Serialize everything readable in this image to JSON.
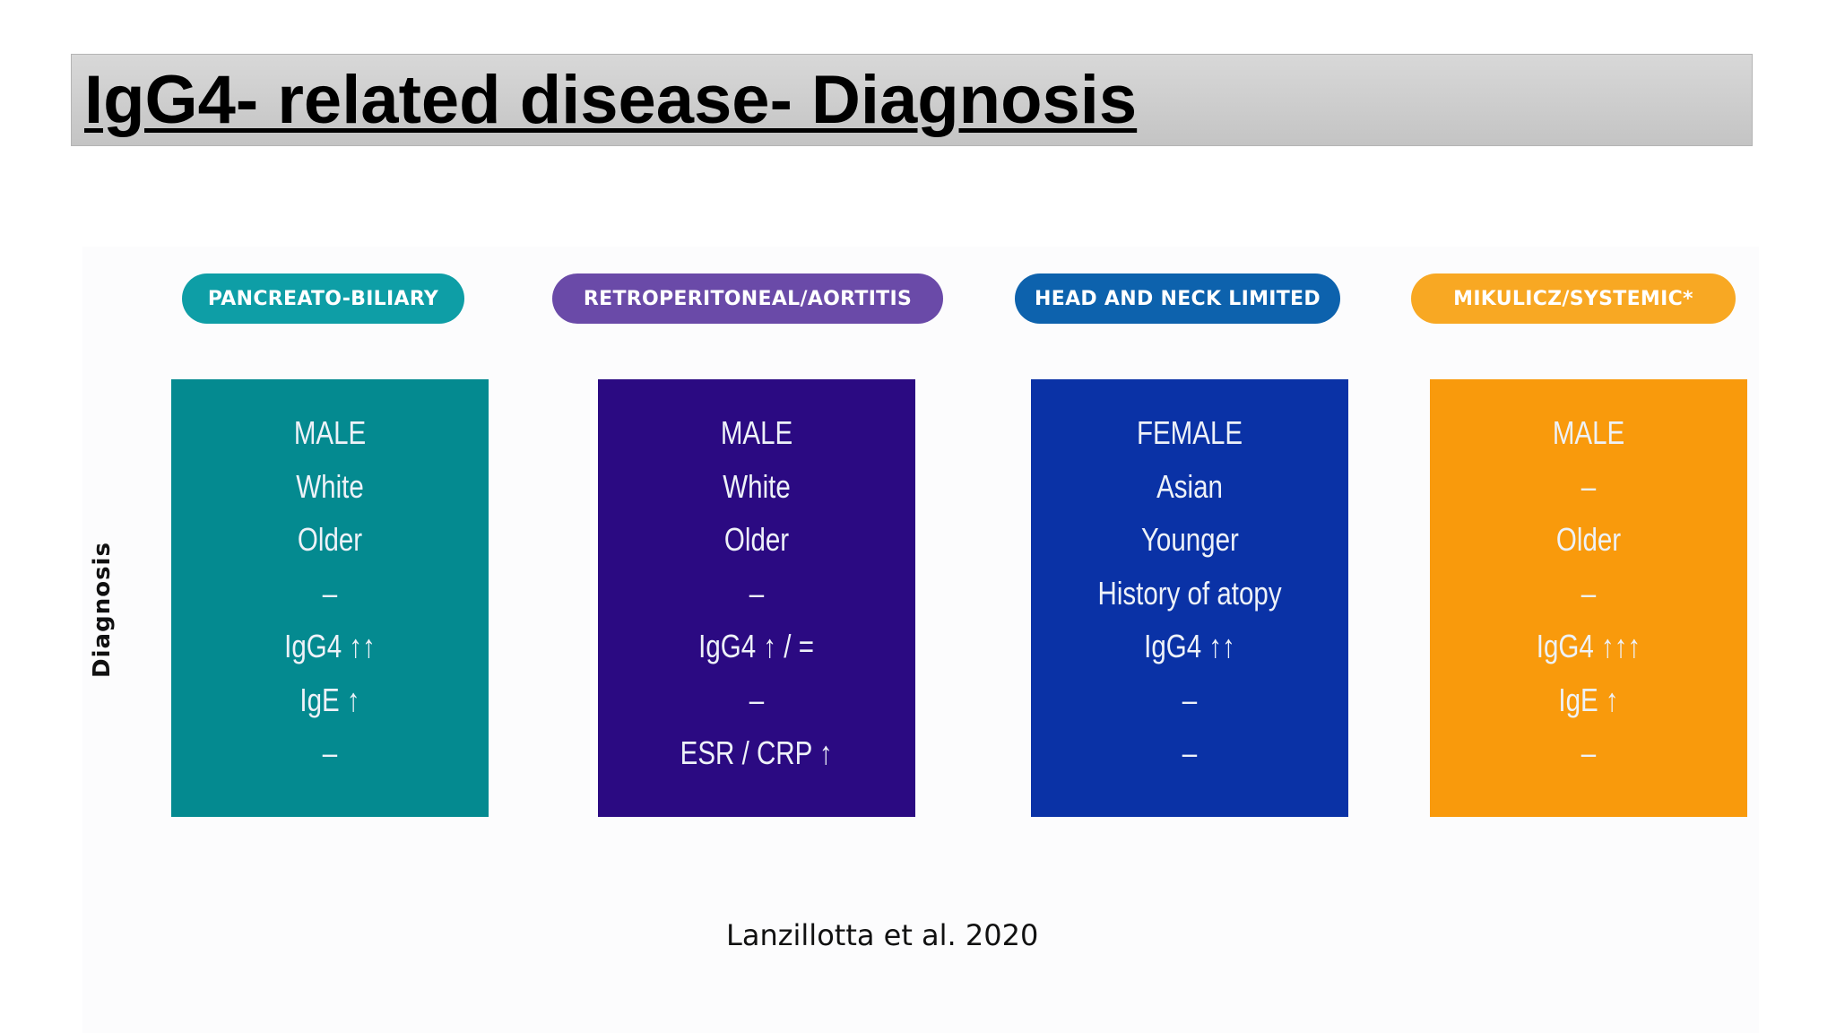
{
  "slide": {
    "title": "IgG4- related disease- Diagnosis",
    "side_label": "Diagnosis",
    "citation": "Lanzillotta et al. 2020"
  },
  "phenotypes": [
    {
      "label": "PANCREATO-BILIARY",
      "pill_color": "#0e9ea6",
      "card_color": "#048a90",
      "lines": [
        "MALE",
        "White",
        "Older",
        "–",
        "IgG4 ↑↑",
        "IgE ↑",
        "–"
      ]
    },
    {
      "label": "RETROPERITONEAL/AORTITIS",
      "pill_color": "#6a4aa8",
      "card_color": "#2b0a82",
      "lines": [
        "MALE",
        "White",
        "Older",
        "–",
        "IgG4 ↑ / =",
        "–",
        "ESR / CRP ↑"
      ]
    },
    {
      "label": "HEAD AND NECK LIMITED",
      "pill_color": "#0d62ad",
      "card_color": "#0a32a6",
      "lines": [
        "FEMALE",
        "Asian",
        "Younger",
        "History of atopy",
        "IgG4 ↑↑",
        "–",
        "–"
      ]
    },
    {
      "label": "MIKULICZ/SYSTEMIC*",
      "pill_color": "#f8a823",
      "card_color": "#f99a0c",
      "lines": [
        "MALE",
        "–",
        "Older",
        "–",
        "IgG4 ↑↑↑",
        "IgE ↑",
        "–"
      ]
    }
  ]
}
